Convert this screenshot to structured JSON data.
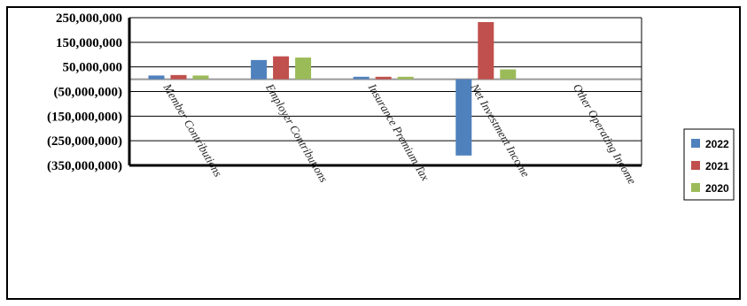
{
  "chart_data": {
    "type": "bar",
    "title": "",
    "xlabel": "",
    "ylabel": "",
    "categories": [
      "Member Contributions",
      "Employer Contributions",
      "Insurance Premium Tax",
      "Net Investment Income",
      "Other Operating Income"
    ],
    "series": [
      {
        "name": "2022",
        "color": "#4f81bd",
        "values": [
          15000000,
          78000000,
          10000000,
          -310000000,
          0
        ]
      },
      {
        "name": "2021",
        "color": "#c0504d",
        "values": [
          17000000,
          93000000,
          10000000,
          232000000,
          0
        ]
      },
      {
        "name": "2020",
        "color": "#9bbb59",
        "values": [
          15000000,
          88000000,
          10000000,
          40000000,
          0
        ]
      }
    ],
    "ylim": [
      -350000000,
      250000000
    ],
    "yticks": [
      250000000,
      150000000,
      50000000,
      -50000000,
      -150000000,
      -250000000,
      -350000000
    ],
    "ytick_labels": [
      "250,000,000",
      "150,000,000",
      "50,000,000",
      "(50,000,000)",
      "(150,000,000)",
      "(250,000,000)",
      "(350,000,000)"
    ],
    "grid": true,
    "legend_position": "right"
  }
}
